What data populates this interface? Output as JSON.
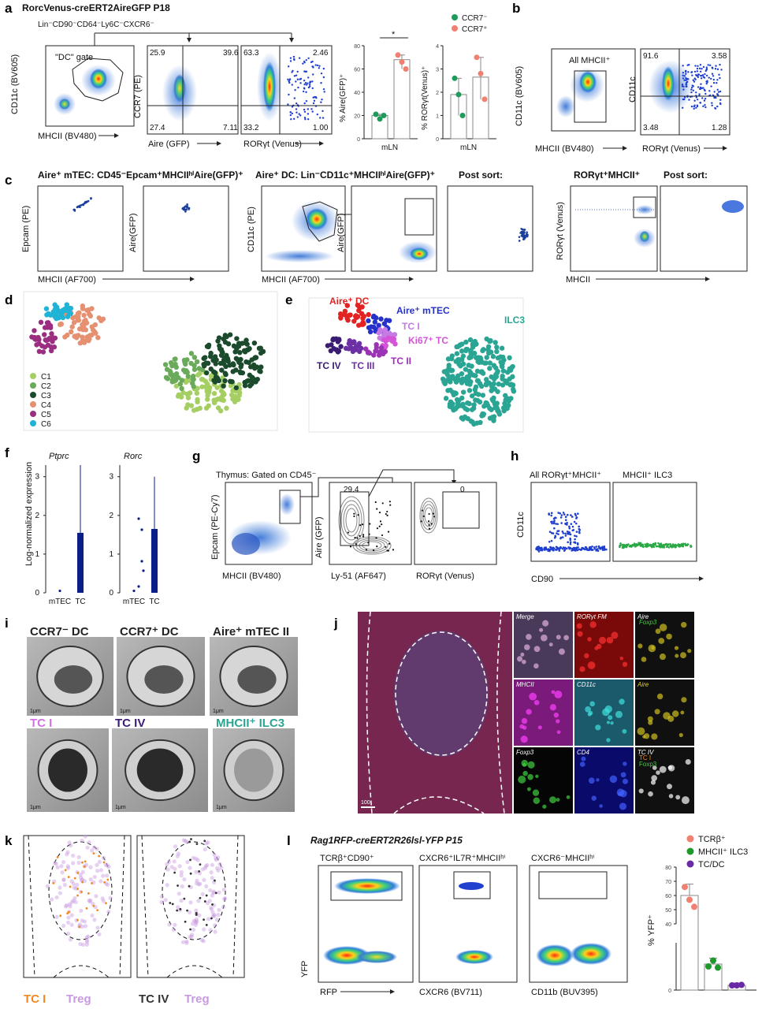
{
  "panel_a": {
    "letter": "a",
    "strain": "RorcVenus-creERT2AireGFP P18",
    "gating": "Lin⁻CD90⁻CD64⁻Ly6C⁻CXCR6⁻",
    "gate_label": "\"DC\" gate",
    "plot1": {
      "xlabel": "MHCII (BV480)",
      "ylabel": "CD11c (BV605)"
    },
    "plot2": {
      "xlabel": "Aire (GFP)",
      "ylabel": "CCR7 (PE)",
      "q_tl": "25.9",
      "q_tr": "39.6",
      "q_bl": "27.4",
      "q_br": "7.11"
    },
    "plot3": {
      "xlabel": "RORγt (Venus)",
      "q_tl": "63.3",
      "q_tr": "2.46",
      "q_bl": "33.2",
      "q_br": "1.00"
    },
    "sig": "*"
  },
  "panel_b": {
    "letter": "b",
    "gate_label": "All MHCII⁺",
    "plot1": {
      "xlabel": "MHCII (BV480)",
      "ylabel": "CD11c (BV605)"
    },
    "plot2": {
      "xlabel": "RORγt (Venus)",
      "ylabel": "CD11c",
      "q_tl": "91.6",
      "q_tr": "3.58",
      "q_bl": "3.48",
      "q_br": "1.28"
    }
  },
  "panel_c": {
    "letter": "c",
    "title_mtec": "Aire⁺ mTEC: CD45⁻Epcam⁺MHCIIʰⁱAire(GFP)⁺",
    "title_dc": "Aire⁺ DC: Lin⁻CD11c⁺MHCIIʰⁱAire(GFP)⁺",
    "post_sort": "Post sort:",
    "title_ror": "RORγt⁺MHCII⁺",
    "post_sort2": "Post sort:",
    "ylab_epcam": "Epcam (PE)",
    "ylab_aire": "Aire(GFP)",
    "ylab_cd11c": "CD11c (PE)",
    "ylab_ror": "RORγt (Venus)",
    "xlab_mhcii": "MHCII (AF700)",
    "xlab_mhcii2": "MHCII (AF700)",
    "xlab_mhcii3": "MHCII"
  },
  "panel_d": {
    "letter": "d",
    "legend": [
      "C1",
      "C2",
      "C3",
      "C4",
      "C5",
      "C6"
    ],
    "colors": [
      "#a6cf63",
      "#6aaa5a",
      "#1b4a2c",
      "#e69072",
      "#9c2e82",
      "#1fb3d6"
    ]
  },
  "panel_e": {
    "letter": "e",
    "labels": {
      "aire_dc": "Aire⁺ DC",
      "aire_mtec": "Aire⁺ mTEC",
      "tc1": "TC I",
      "ki67": "Ki67⁺ TC",
      "tc2": "TC II",
      "tc3": "TC III",
      "tc4": "TC IV",
      "ilc3": "ILC3"
    },
    "colors": {
      "aire_dc": "#e32222",
      "aire_mtec": "#2531c9",
      "tc1": "#c67ae3",
      "ki67": "#d652d6",
      "tc2": "#9a33b4",
      "tc3": "#6d2fa6",
      "tc4": "#3a1c72",
      "ilc3": "#2aa593"
    }
  },
  "panel_f": {
    "letter": "f",
    "ylabel": "Log-normalized expression",
    "genes": [
      "Ptprc",
      "Rorc"
    ],
    "chart_data": {
      "type": "bar",
      "categories": [
        "mTEC",
        "TC"
      ],
      "series": [
        {
          "name": "Ptprc",
          "values": [
            0,
            1.55
          ],
          "upper": [
            0,
            3.3
          ]
        },
        {
          "name": "Rorc",
          "values": [
            0,
            1.65
          ],
          "upper": [
            0,
            3.0
          ]
        }
      ],
      "yticks": [
        "0",
        "1",
        "2",
        "3"
      ],
      "ylim": [
        0,
        3.3
      ]
    }
  },
  "panel_g": {
    "letter": "g",
    "title": "Thymus: Gated on CD45⁻",
    "plot1": {
      "xlabel": "MHCII (BV480)",
      "ylabel": "Epcam (PE-Cy7)"
    },
    "plot2": {
      "xlabel": "Ly-51 (AF647)",
      "ylabel": "Aire (GFP)",
      "gate_value": "29.4"
    },
    "plot3": {
      "xlabel": "RORγt (Venus)",
      "gate_value": "0"
    }
  },
  "panel_h": {
    "letter": "h",
    "title1": "All RORγt⁺MHCII⁺",
    "title2": "MHCII⁺ ILC3",
    "ylabel": "CD11c",
    "xlabel": "CD90"
  },
  "panel_i": {
    "letter": "i",
    "top": [
      "CCR7⁻ DC",
      "CCR7⁺ DC",
      "Aire⁺ mTEC II"
    ],
    "bottom": [
      "TC I",
      "TC IV",
      "MHCII⁺ ILC3"
    ],
    "bottom_colors": [
      "#d470e6",
      "#3a1c72",
      "#2aa593"
    ],
    "scale": "1μm"
  },
  "panel_j": {
    "letter": "j",
    "tiles": [
      "Merge",
      "RORγt FM",
      "Aire",
      "MHCII",
      "CD11c",
      "Aire",
      "Foxp3",
      "CD4",
      "TC IV"
    ],
    "tile_extra": {
      "aire_foxp3": "Foxp3",
      "tc_tc1": "TC I",
      "tc_foxp3": "Foxp3"
    },
    "scale": "100"
  },
  "panel_k": {
    "letter": "k",
    "left_a": "TC I",
    "left_b": "Treg",
    "right_a": "TC IV",
    "right_b": "Treg"
  },
  "panel_l": {
    "letter": "l",
    "strain": "Rag1RFP-creERT2R26lsl-YFP P15",
    "titles": [
      "TCRβ⁺CD90⁺",
      "CXCR6⁺IL7R⁺MHCIIʰⁱ",
      "CXCR6⁻MHCIIʰⁱ"
    ],
    "xlabels": [
      "RFP",
      "CXCR6 (BV711)",
      "CD11b (BUV395)"
    ],
    "ylabel": "YFP",
    "bar_ylabel": "% YFP⁺",
    "legend": [
      "TCRβ⁺",
      "MHCII⁺ ILC3",
      "TC/DC"
    ],
    "colors": [
      "#f08070",
      "#1e9a2a",
      "#6a2aa6"
    ],
    "yticks": [
      "0",
      "10",
      "20",
      "30",
      "40",
      "50",
      "60",
      "70",
      "80"
    ],
    "chart_data": {
      "type": "bar",
      "categories": [
        "TCRβ⁺",
        "MHCII⁺ ILC3",
        "TC/DC"
      ],
      "values": [
        60,
        1.1,
        0.2
      ],
      "err_upper": [
        68,
        1.35,
        0.3
      ],
      "points": [
        [
          66,
          57,
          52
        ],
        [
          1.0,
          1.25,
          0.95
        ],
        [
          0.2,
          0.2,
          0.22
        ]
      ],
      "ylim": [
        0,
        80
      ],
      "break": [
        2,
        40
      ]
    }
  },
  "panel_a_bars": {
    "legend": [
      "CCR7⁻",
      "CCR7⁺"
    ],
    "colors": [
      "#1e9a5a",
      "#f08070"
    ],
    "ylab1": "% Aire(GFP)⁺",
    "ylab2": "% RORγt(Venus)⁺",
    "xcat": "mLN",
    "xcat2": "mLN",
    "yticks1": [
      "0",
      "20",
      "40",
      "60",
      "80"
    ],
    "yticks2": [
      "0",
      "1",
      "2",
      "3",
      "4"
    ],
    "chart_data": [
      {
        "type": "bar",
        "ylabel": "% Aire(GFP)⁺",
        "categories": [
          "mLN"
        ],
        "series": [
          {
            "name": "CCR7⁻",
            "values": [
              20
            ],
            "points": [
              21,
              17,
              20
            ]
          },
          {
            "name": "CCR7⁺",
            "values": [
              68
            ],
            "points": [
              72,
              66,
              60
            ]
          }
        ],
        "ylim": [
          0,
          80
        ]
      },
      {
        "type": "bar",
        "ylabel": "% RORγt(Venus)⁺",
        "categories": [
          "mLN"
        ],
        "series": [
          {
            "name": "CCR7⁻",
            "values": [
              1.9
            ],
            "points": [
              2.6,
              1.9,
              1.0
            ]
          },
          {
            "name": "CCR7⁺",
            "values": [
              2.65
            ],
            "points": [
              3.5,
              2.8,
              1.7
            ]
          }
        ],
        "ylim": [
          0,
          4
        ]
      }
    ]
  }
}
